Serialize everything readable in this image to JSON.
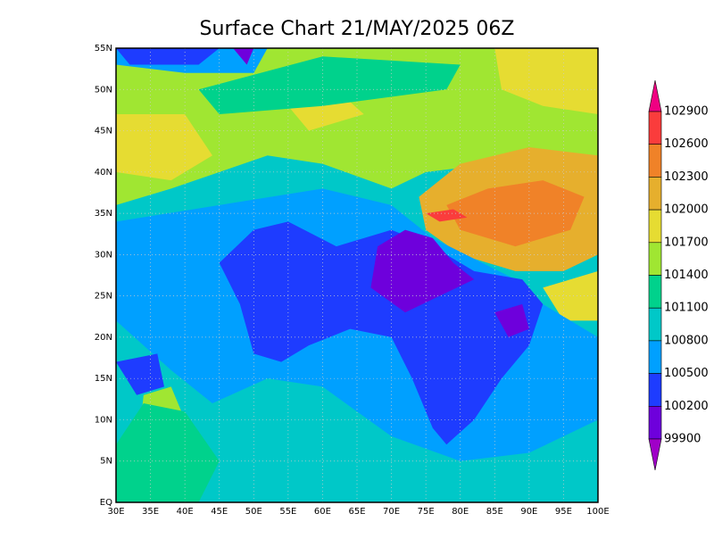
{
  "title": "Surface Chart 21/MAY/2025 06Z",
  "lat_labels": [
    "55N",
    "50N",
    "45N",
    "40N",
    "35N",
    "30N",
    "25N",
    "20N",
    "15N",
    "10N",
    "5N",
    "EQ"
  ],
  "lon_labels": [
    "30E",
    "35E",
    "40E",
    "45E",
    "50E",
    "55E",
    "60E",
    "65E",
    "70E",
    "75E",
    "80E",
    "85E",
    "90E",
    "95E",
    "100E"
  ],
  "colorbar": {
    "labels": [
      102900,
      102600,
      102300,
      102000,
      101700,
      101400,
      101100,
      100800,
      100500,
      100200,
      99900
    ],
    "colors": [
      "#f00082",
      "#fa3c3c",
      "#f08228",
      "#e6af2d",
      "#e6dc32",
      "#a0e632",
      "#00d28c",
      "#00c8c8",
      "#00a0ff",
      "#1e3cff",
      "#6e00dc",
      "#a000c8"
    ]
  }
}
